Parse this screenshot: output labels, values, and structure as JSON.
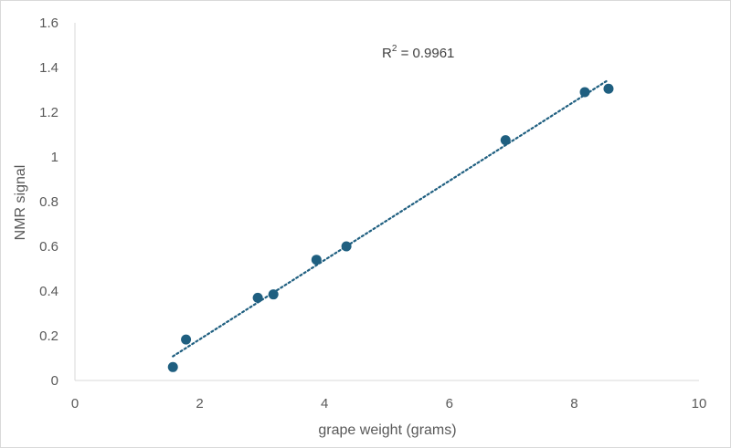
{
  "chart_data": {
    "type": "scatter",
    "title": "",
    "xlabel": "grape weight (grams)",
    "ylabel": "NMR signal",
    "xlim": [
      0,
      10
    ],
    "ylim": [
      0,
      1.6
    ],
    "x_ticks": [
      0,
      2,
      4,
      6,
      8,
      10
    ],
    "x_tick_labels": [
      "0",
      "2",
      "4",
      "6",
      "8",
      "10"
    ],
    "y_ticks": [
      0,
      0.2,
      0.4,
      0.6,
      0.8,
      1.0,
      1.2,
      1.4,
      1.6
    ],
    "y_tick_labels": [
      "0",
      "0.2",
      "0.4",
      "0.6",
      "0.8",
      "1",
      "1.2",
      "1.4",
      "1.6"
    ],
    "grid": false,
    "legend": "none",
    "series": [
      {
        "color": "#1f5f80",
        "x": [
          1.57,
          1.78,
          2.93,
          3.18,
          3.87,
          4.35,
          6.9,
          8.17,
          8.55
        ],
        "y": [
          0.06,
          0.183,
          0.37,
          0.385,
          0.54,
          0.6,
          1.075,
          1.29,
          1.305
        ]
      }
    ],
    "trendline": {
      "type": "linear",
      "style": "dotted",
      "color": "#1f5f80",
      "x_range": [
        1.57,
        8.55
      ],
      "y_range": [
        0.108,
        1.345
      ]
    },
    "annotation": {
      "r2_label": "R",
      "r2_sup": "2",
      "r2_value": " = 0.9961"
    }
  }
}
